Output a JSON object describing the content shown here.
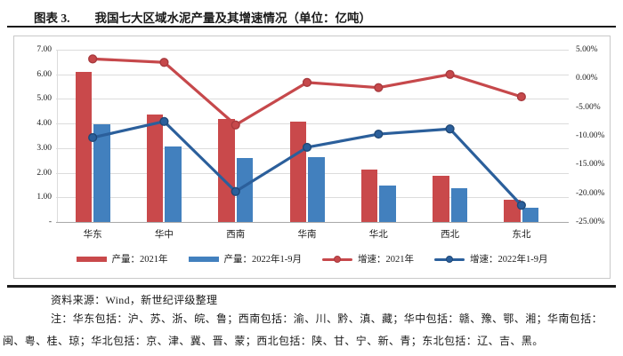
{
  "title": {
    "prefix": "图表 3.",
    "text": "我国七大区域水泥产量及其增速情况（单位：亿吨）"
  },
  "chart_data": {
    "type": "bar+line combo",
    "categories": [
      "华东",
      "华中",
      "西南",
      "华南",
      "华北",
      "西北",
      "东北"
    ],
    "series": [
      {
        "name": "产量：2021年",
        "type": "bar",
        "axis": "left",
        "color": "#c9494b",
        "values": [
          6.08,
          4.37,
          4.19,
          4.06,
          2.13,
          1.88,
          0.9
        ]
      },
      {
        "name": "产量：2022年1-9月",
        "type": "bar",
        "axis": "left",
        "color": "#4280be",
        "values": [
          3.98,
          3.06,
          2.58,
          2.65,
          1.48,
          1.36,
          0.57
        ]
      },
      {
        "name": "增速：2021年",
        "type": "line",
        "axis": "right",
        "color": "#c6484b",
        "marker_stroke": "#a83a3e",
        "values": [
          3.4,
          2.8,
          -8.1,
          -0.7,
          -1.6,
          0.7,
          -3.2
        ]
      },
      {
        "name": "增速：2022年1-9月",
        "type": "line",
        "axis": "right",
        "color": "#2b5f9b",
        "marker_stroke": "#1f4877",
        "values": [
          -10.3,
          -7.5,
          -19.7,
          -12.0,
          -9.7,
          -8.8,
          -22.1
        ]
      }
    ],
    "left_axis": {
      "min": 0,
      "max": 7,
      "ticks": [
        "7.00",
        "6.00",
        "5.00",
        "4.00",
        "3.00",
        "2.00",
        "1.00",
        "-"
      ]
    },
    "right_axis": {
      "min": -25,
      "max": 5,
      "ticks": [
        "5.00%",
        "0.00%",
        "-5.00%",
        "-10.00%",
        "-15.00%",
        "-20.00%",
        "-25.00%"
      ]
    },
    "grid": "horizontal",
    "legend_position": "bottom"
  },
  "footer": {
    "source": "资料来源：Wind，新世纪评级整理",
    "note": "注：华东包括：沪、苏、浙、皖、鲁；西南包括：渝、川、黔、滇、藏；华中包括：赣、豫、鄂、湘；华南包括：闽、粤、桂、琼；华北包括：京、津、冀、晋、蒙；西北包括：陕、甘、宁、新、青；东北包括：辽、吉、黑。"
  }
}
